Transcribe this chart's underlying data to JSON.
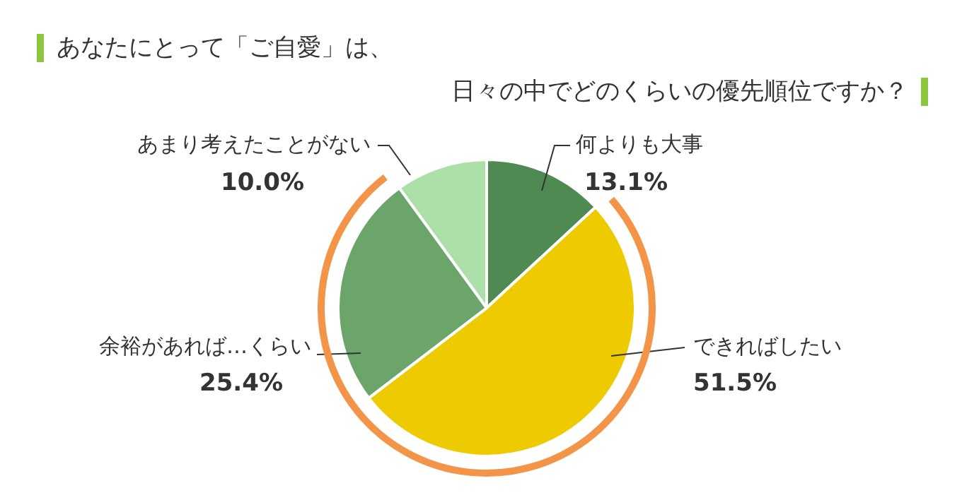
{
  "chart_data": {
    "type": "pie",
    "title": "あなたにとって「ご自愛」は、",
    "subtitle": "日々の中でどのくらいの優先順位ですか？",
    "categories": [
      "何よりも大事",
      "できればしたい",
      "余裕があれば…くらい",
      "あまり考えたことがない"
    ],
    "values": [
      13.1,
      51.5,
      25.4,
      10.0
    ],
    "value_labels": [
      "13.1%",
      "51.5%",
      "25.4%",
      "10.0%"
    ],
    "colors": [
      "#4e8a52",
      "#eecb00",
      "#6ca56a",
      "#ade0a8"
    ],
    "legend": false
  }
}
